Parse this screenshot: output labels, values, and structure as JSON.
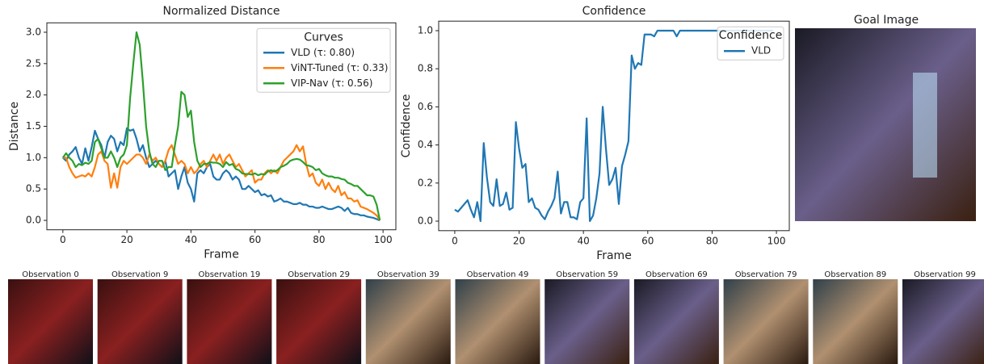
{
  "chart_data": [
    {
      "type": "line",
      "title": "Normalized Distance",
      "xlabel": "Frame",
      "ylabel": "Distance",
      "legend": "upper right",
      "legend_title": "Curves",
      "grid": false,
      "xlim": [
        -5,
        104
      ],
      "ylim": [
        -0.15,
        3.15
      ],
      "xticks": [
        0,
        20,
        40,
        60,
        80,
        100
      ],
      "yticks": [
        {
          "value": 0,
          "label": "0.0"
        },
        0.5,
        {
          "value": 1,
          "label": "1.0"
        },
        1.5,
        {
          "value": 2,
          "label": "2.0"
        },
        2.5,
        {
          "value": 3,
          "label": "3.0"
        }
      ],
      "x": [
        0,
        1,
        2,
        3,
        4,
        5,
        6,
        7,
        8,
        9,
        10,
        11,
        12,
        13,
        14,
        15,
        16,
        17,
        18,
        19,
        20,
        21,
        22,
        23,
        24,
        25,
        26,
        27,
        28,
        29,
        30,
        31,
        32,
        33,
        34,
        35,
        36,
        37,
        38,
        39,
        40,
        41,
        42,
        43,
        44,
        45,
        46,
        47,
        48,
        49,
        50,
        51,
        52,
        53,
        54,
        55,
        56,
        57,
        58,
        59,
        60,
        61,
        62,
        63,
        64,
        65,
        66,
        67,
        68,
        69,
        70,
        71,
        72,
        73,
        74,
        75,
        76,
        77,
        78,
        79,
        80,
        81,
        82,
        83,
        84,
        85,
        86,
        87,
        88,
        89,
        90,
        91,
        92,
        93,
        94,
        95,
        96,
        97,
        98,
        99
      ],
      "series": [
        {
          "name": "VLD (τ: 0.80)",
          "color": "#1f77b4",
          "values": [
            1.0,
            0.95,
            1.05,
            1.1,
            1.17,
            1.0,
            0.9,
            1.15,
            0.95,
            1.17,
            1.43,
            1.3,
            1.2,
            1.0,
            1.25,
            1.35,
            1.3,
            1.1,
            1.25,
            1.2,
            1.47,
            1.43,
            1.45,
            1.3,
            1.1,
            1.2,
            1.0,
            0.85,
            0.9,
            0.95,
            0.9,
            0.85,
            0.95,
            0.7,
            0.75,
            0.8,
            0.5,
            0.7,
            0.85,
            0.6,
            0.5,
            0.3,
            0.75,
            0.8,
            0.75,
            0.85,
            0.9,
            0.7,
            0.65,
            0.65,
            0.75,
            0.8,
            0.75,
            0.65,
            0.7,
            0.65,
            0.5,
            0.5,
            0.55,
            0.5,
            0.45,
            0.48,
            0.4,
            0.42,
            0.38,
            0.4,
            0.3,
            0.32,
            0.35,
            0.3,
            0.3,
            0.28,
            0.26,
            0.26,
            0.28,
            0.25,
            0.25,
            0.22,
            0.22,
            0.2,
            0.2,
            0.22,
            0.2,
            0.18,
            0.18,
            0.2,
            0.22,
            0.2,
            0.15,
            0.2,
            0.12,
            0.1,
            0.1,
            0.08,
            0.08,
            0.06,
            0.05,
            0.04,
            0.02,
            0.0
          ]
        },
        {
          "name": "ViNT-Tuned (τ: 0.33)",
          "color": "#ff7f0e",
          "values": [
            1.0,
            1.0,
            0.85,
            0.75,
            0.68,
            0.7,
            0.72,
            0.7,
            0.75,
            0.7,
            0.85,
            1.05,
            1.1,
            0.95,
            0.9,
            0.52,
            0.75,
            0.52,
            0.85,
            0.95,
            0.9,
            0.95,
            1.0,
            1.05,
            1.05,
            1.0,
            0.9,
            1.05,
            0.95,
            1.0,
            0.9,
            0.85,
            0.95,
            1.12,
            1.2,
            1.05,
            0.9,
            0.95,
            0.9,
            0.75,
            0.85,
            0.75,
            0.8,
            0.9,
            0.95,
            0.85,
            0.95,
            1.05,
            0.95,
            1.05,
            0.9,
            1.0,
            1.05,
            0.95,
            0.85,
            0.9,
            0.8,
            0.7,
            0.75,
            0.8,
            0.6,
            0.65,
            0.65,
            0.75,
            0.8,
            0.75,
            0.8,
            0.75,
            0.85,
            0.95,
            1.0,
            1.05,
            1.1,
            1.2,
            1.1,
            1.18,
            0.9,
            0.7,
            0.75,
            0.6,
            0.55,
            0.65,
            0.5,
            0.6,
            0.5,
            0.45,
            0.55,
            0.4,
            0.45,
            0.35,
            0.35,
            0.3,
            0.32,
            0.22,
            0.2,
            0.18,
            0.15,
            0.12,
            0.08,
            0.0
          ]
        },
        {
          "name": "VIP-Nav (τ: 0.56)",
          "color": "#2ca02c",
          "values": [
            1.0,
            1.07,
            1.0,
            0.95,
            0.85,
            0.9,
            0.88,
            0.92,
            0.9,
            0.95,
            1.25,
            1.3,
            1.15,
            1.0,
            1.0,
            1.1,
            1.0,
            0.85,
            1.0,
            1.05,
            1.2,
            1.95,
            2.5,
            3.0,
            2.8,
            2.2,
            1.5,
            1.1,
            0.9,
            0.85,
            0.95,
            0.95,
            0.8,
            0.85,
            0.85,
            1.2,
            1.5,
            2.05,
            2.0,
            1.65,
            1.75,
            1.25,
            0.95,
            0.85,
            0.9,
            0.9,
            0.93,
            0.92,
            0.92,
            0.9,
            0.85,
            0.93,
            0.88,
            0.9,
            0.82,
            0.8,
            0.75,
            0.74,
            0.74,
            0.73,
            0.75,
            0.72,
            0.74,
            0.73,
            0.78,
            0.8,
            0.78,
            0.8,
            0.85,
            0.87,
            0.9,
            0.95,
            0.97,
            0.98,
            0.97,
            0.93,
            0.88,
            0.87,
            0.85,
            0.8,
            0.82,
            0.75,
            0.72,
            0.7,
            0.7,
            0.68,
            0.68,
            0.66,
            0.65,
            0.6,
            0.58,
            0.55,
            0.55,
            0.5,
            0.45,
            0.4,
            0.4,
            0.38,
            0.25,
            0.0
          ]
        }
      ]
    },
    {
      "type": "line",
      "title": "Confidence",
      "xlabel": "Frame",
      "ylabel": "Confidence",
      "legend": "upper right",
      "legend_title": "Confidence",
      "grid": false,
      "xlim": [
        -5,
        104
      ],
      "ylim": [
        -0.05,
        1.05
      ],
      "xticks": [
        0,
        20,
        40,
        60,
        80,
        100
      ],
      "yticks": [
        {
          "value": 0,
          "label": "0.0"
        },
        0.2,
        0.4,
        0.6,
        0.8,
        {
          "value": 1,
          "label": "1.0"
        }
      ],
      "x": [
        0,
        1,
        2,
        3,
        4,
        5,
        6,
        7,
        8,
        9,
        10,
        11,
        12,
        13,
        14,
        15,
        16,
        17,
        18,
        19,
        20,
        21,
        22,
        23,
        24,
        25,
        26,
        27,
        28,
        29,
        30,
        31,
        32,
        33,
        34,
        35,
        36,
        37,
        38,
        39,
        40,
        41,
        42,
        43,
        44,
        45,
        46,
        47,
        48,
        49,
        50,
        51,
        52,
        53,
        54,
        55,
        56,
        57,
        58,
        59,
        60,
        61,
        62,
        63,
        64,
        65,
        66,
        67,
        68,
        69,
        70,
        71,
        72,
        73,
        74,
        75,
        76,
        77,
        78,
        79,
        80,
        81,
        82,
        83,
        84,
        85,
        86,
        87,
        88,
        89,
        90,
        91,
        92,
        93,
        94,
        95,
        96,
        97,
        98,
        99
      ],
      "series": [
        {
          "name": "VLD",
          "color": "#1f77b4",
          "values": [
            0.06,
            0.05,
            0.07,
            0.09,
            0.11,
            0.06,
            0.02,
            0.1,
            0.0,
            0.41,
            0.23,
            0.1,
            0.08,
            0.22,
            0.08,
            0.09,
            0.15,
            0.06,
            0.07,
            0.52,
            0.38,
            0.28,
            0.3,
            0.1,
            0.12,
            0.07,
            0.06,
            0.03,
            0.01,
            0.05,
            0.08,
            0.12,
            0.26,
            0.04,
            0.1,
            0.1,
            0.02,
            0.02,
            0.01,
            0.1,
            0.12,
            0.54,
            0.0,
            0.03,
            0.12,
            0.25,
            0.6,
            0.38,
            0.19,
            0.22,
            0.28,
            0.09,
            0.29,
            0.35,
            0.42,
            0.87,
            0.8,
            0.83,
            0.82,
            0.98,
            0.98,
            0.98,
            0.97,
            1.0,
            1.0,
            1.0,
            1.0,
            1.0,
            1.0,
            0.97,
            1.0,
            1.0,
            1.0,
            1.0,
            1.0,
            1.0,
            1.0,
            1.0,
            1.0,
            1.0,
            1.0,
            1.0,
            1.0,
            1.0,
            1.0,
            1.0,
            1.0,
            1.0,
            1.0,
            1.0,
            1.0,
            1.0,
            1.0,
            1.0,
            1.0,
            1.0,
            1.0,
            1.0,
            1.0,
            1.0
          ]
        }
      ]
    }
  ],
  "goal_image": {
    "title": "Goal Image"
  },
  "observations": [
    "Observation 0",
    "Observation 9",
    "Observation 19",
    "Observation 29",
    "Observation 39",
    "Observation 49",
    "Observation 59",
    "Observation 69",
    "Observation 79",
    "Observation 89",
    "Observation 99"
  ]
}
